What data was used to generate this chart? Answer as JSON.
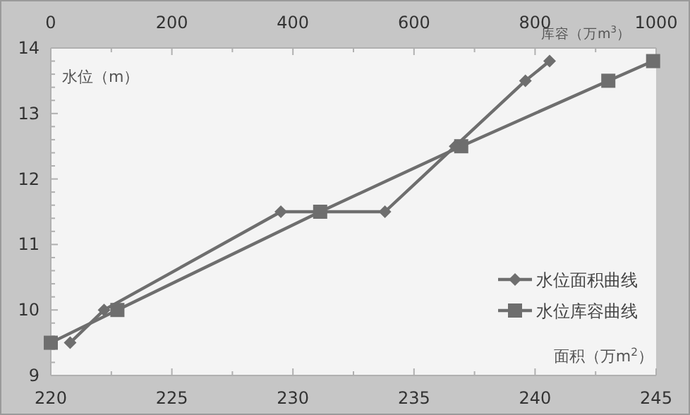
{
  "chart_data": {
    "type": "line",
    "xlabel": "面积（万m$^{2}$）",
    "x2label": "库容（万m$^{3}$）",
    "ylabel": "水位（m）",
    "xlim": [
      220,
      245
    ],
    "xticks": [
      220,
      225,
      230,
      235,
      240,
      245
    ],
    "x2lim": [
      0,
      1000
    ],
    "x2ticks": [
      0,
      200,
      400,
      600,
      800,
      1000
    ],
    "ylim": [
      9,
      14
    ],
    "yticks": [
      9,
      10,
      11,
      12,
      13,
      14
    ],
    "grid": false,
    "legend": "bottom right",
    "line_style": "solid",
    "series": [
      {
        "name": "水位面积曲线",
        "color": "#6e6e6e",
        "marker": "diamond",
        "x": [
          220.8,
          222.2,
          229.5,
          233.8,
          236.7,
          239.6,
          240.6
        ],
        "values": [
          9.5,
          10,
          11.5,
          11.5,
          12.5,
          13.5,
          13.8
        ]
      },
      {
        "name": "水位库容曲线",
        "color": "#6e6e6e",
        "marker": "square",
        "axis": "x2",
        "x": [
          0,
          110,
          445,
          678,
          921,
          995
        ],
        "values": [
          9.5,
          10,
          11.5,
          12.5,
          13.5,
          13.8
        ]
      }
    ]
  }
}
